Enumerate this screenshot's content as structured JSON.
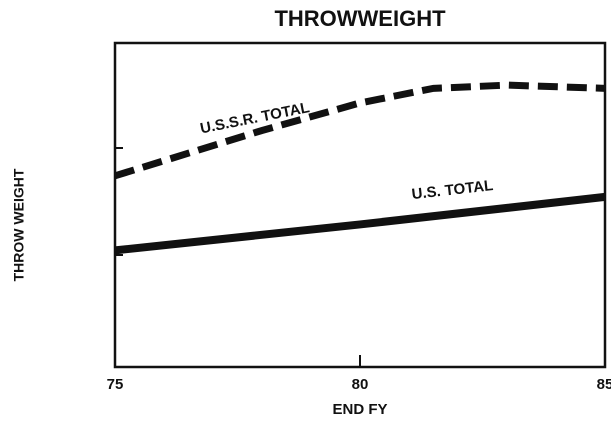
{
  "chart_data": {
    "type": "line",
    "title": "THROWWEIGHT",
    "x_label": "END FY",
    "y_label": "THROW WEIGHT",
    "xlim": [
      75,
      85
    ],
    "xticks": [
      75,
      80,
      85
    ],
    "ylim": [
      0,
      100
    ],
    "series": [
      {
        "name": "U.S.S.R. TOTAL",
        "color": "#111111",
        "dashed": true,
        "x": [
          75,
          78,
          80,
          81.5,
          83,
          85
        ],
        "values": [
          59,
          73,
          81.5,
          86,
          87,
          86
        ]
      },
      {
        "name": "U.S. TOTAL",
        "color": "#111111",
        "dashed": false,
        "x": [
          75,
          80,
          85
        ],
        "values": [
          36,
          44,
          52.5
        ]
      }
    ]
  }
}
